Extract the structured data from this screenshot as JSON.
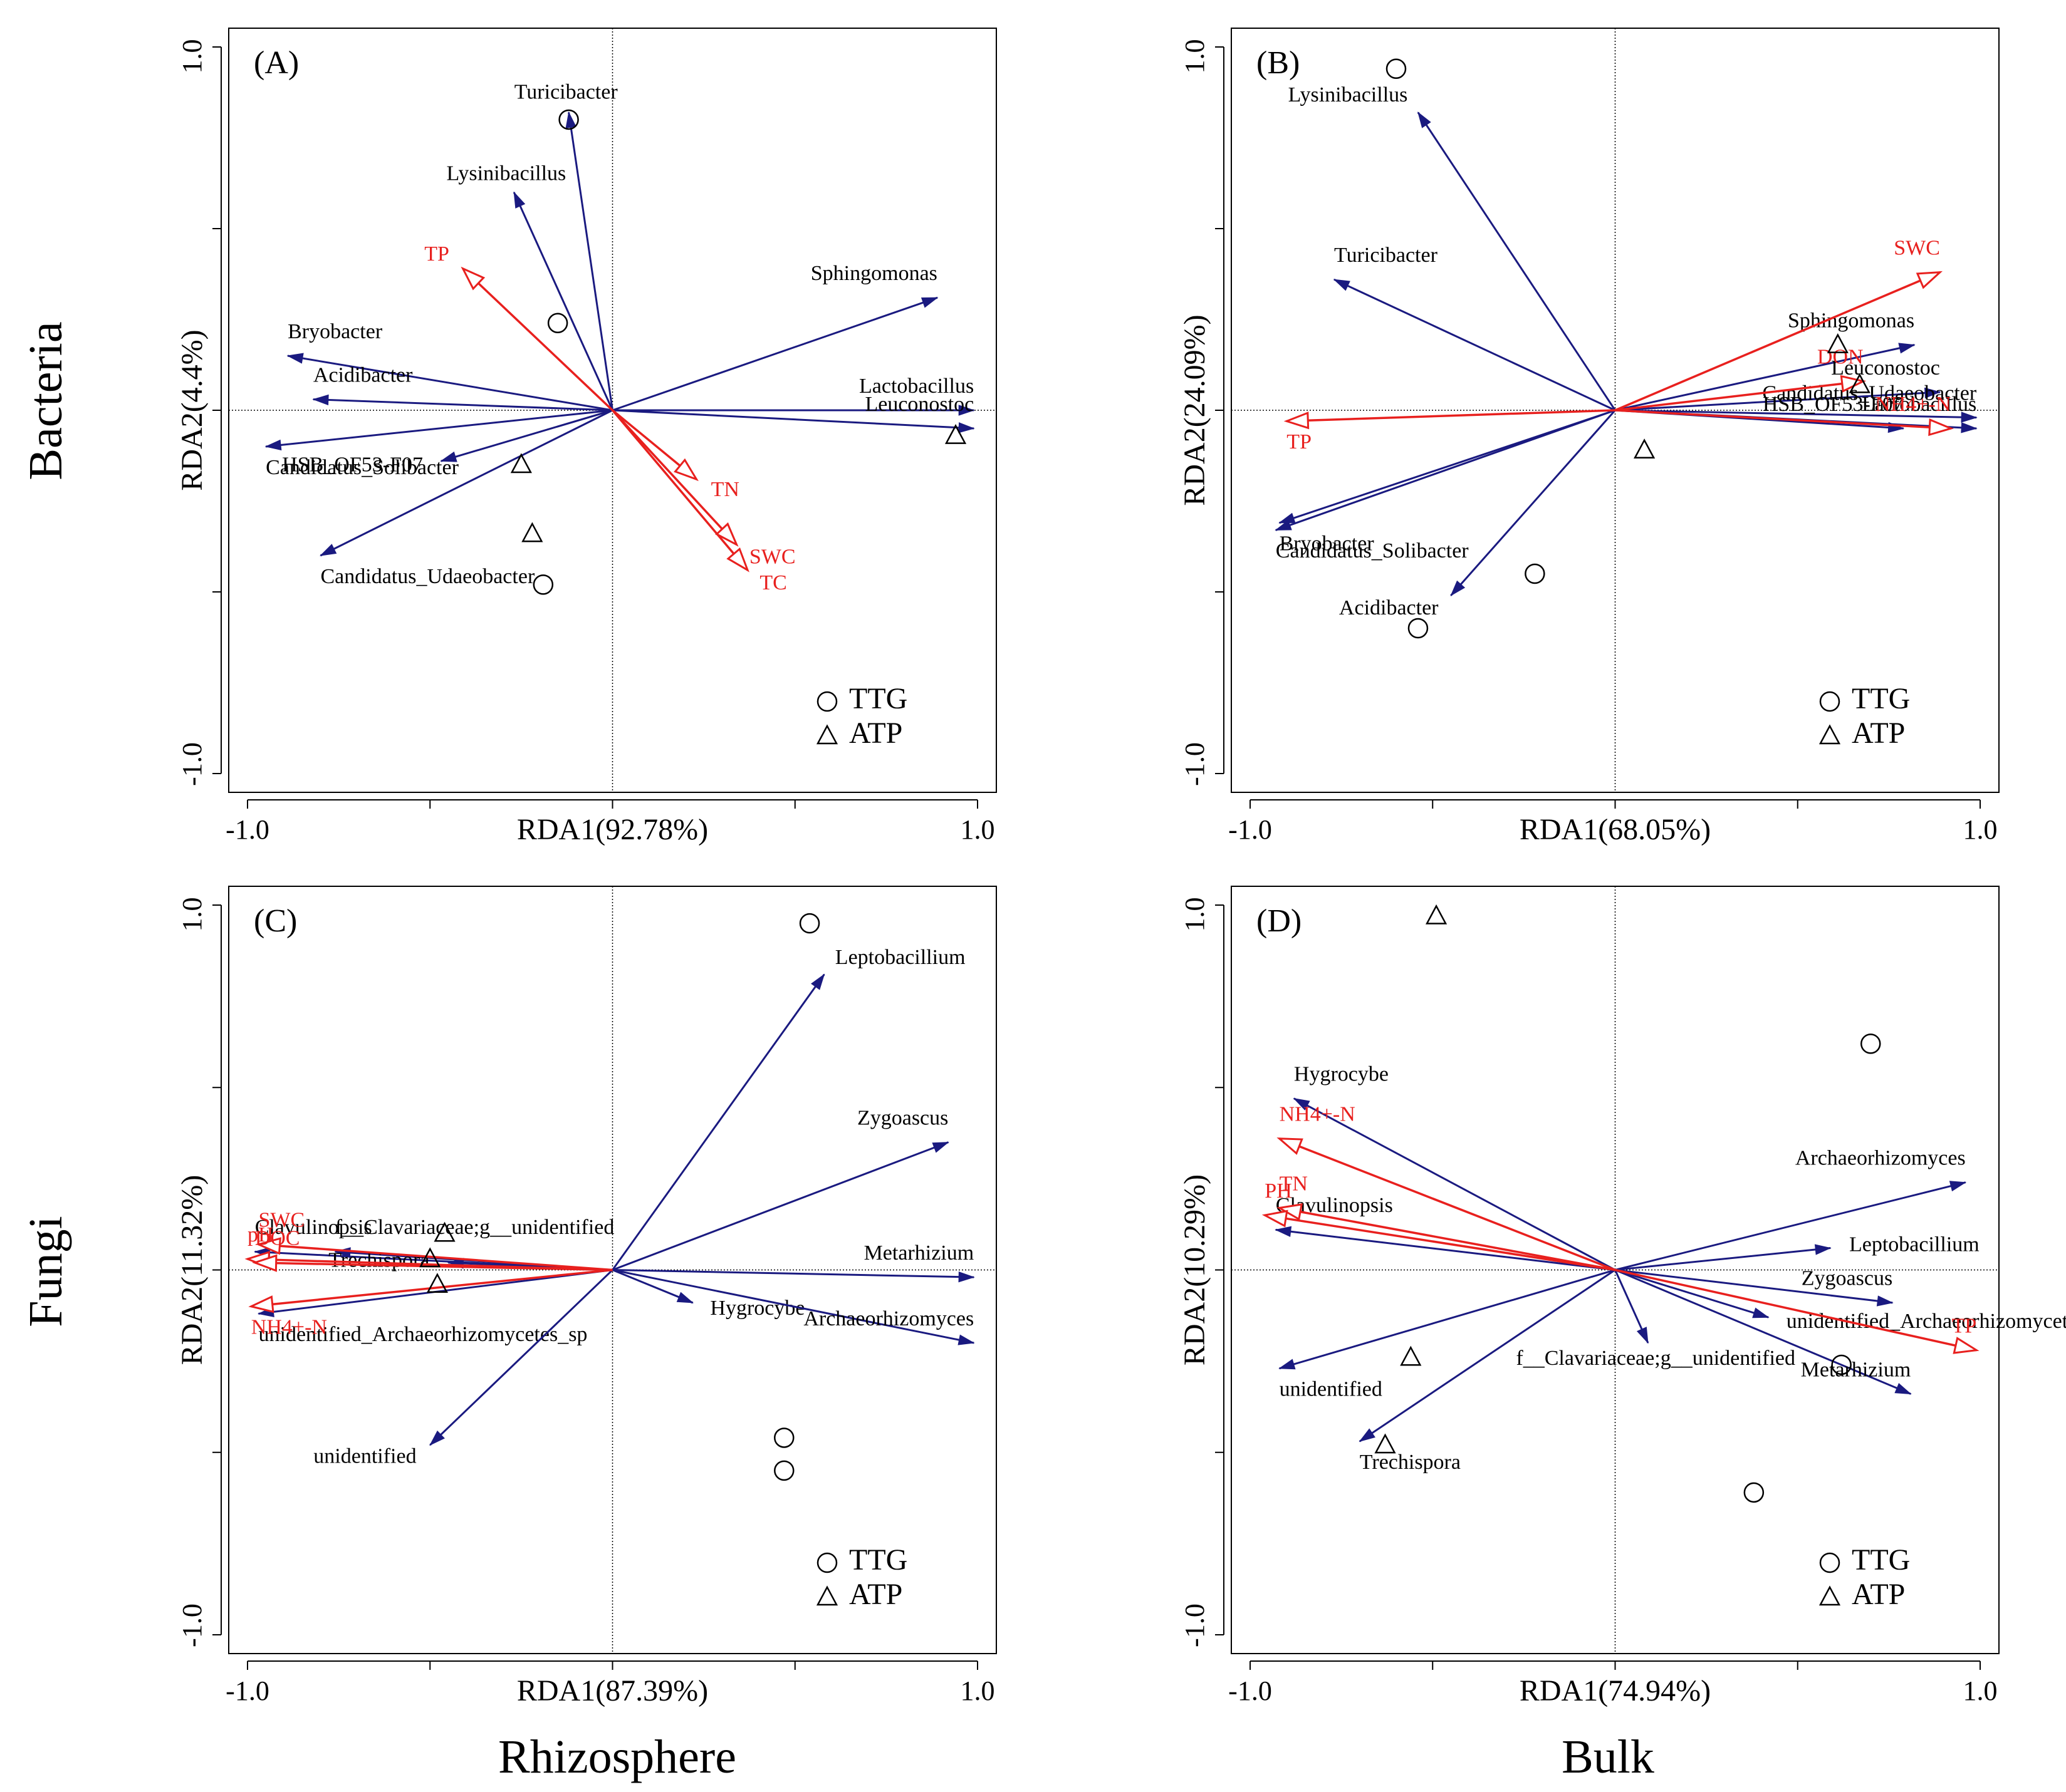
{
  "figure": {
    "row_labels": [
      "Bacteria",
      "Fungi"
    ],
    "column_labels": [
      "Rhizosphere",
      "Bulk"
    ],
    "legend": [
      {
        "label": "TTG",
        "marker": "circle"
      },
      {
        "label": "ATP",
        "marker": "triangle"
      }
    ],
    "colors": {
      "species": "#1a1a80",
      "env": "#e8201e",
      "axis": "#000000"
    }
  },
  "chart_data": [
    {
      "type": "scatter",
      "panel": "(A)",
      "xlabel": "RDA1(92.78%)",
      "ylabel": "RDA2(4.4%)",
      "xlim": [
        -1.0,
        1.0
      ],
      "ylim": [
        -1.0,
        1.0
      ],
      "x_ticks": [
        "-1.0",
        "1.0"
      ],
      "y_ticks": [
        "-1.0",
        "1.0"
      ],
      "species_arrows": [
        {
          "name": "Turicibacter",
          "x": -0.12,
          "y": 0.82
        },
        {
          "name": "Lysinibacillus",
          "x": -0.27,
          "y": 0.6
        },
        {
          "name": "Sphingomonas",
          "x": 0.89,
          "y": 0.31
        },
        {
          "name": "Bryobacter",
          "x": -0.89,
          "y": 0.15
        },
        {
          "name": "Acidibacter",
          "x": -0.82,
          "y": 0.03
        },
        {
          "name": "Lactobacillus",
          "x": 0.99,
          "y": 0.0
        },
        {
          "name": "Candidatus_Solibacter",
          "x": -0.95,
          "y": -0.1
        },
        {
          "name": "Leuconostoc",
          "x": 0.99,
          "y": -0.05
        },
        {
          "name": "HSB_OF53-F07",
          "x": -0.47,
          "y": -0.14
        },
        {
          "name": "Candidatus_Udaeobacter",
          "x": -0.8,
          "y": -0.4
        }
      ],
      "env_arrows": [
        {
          "name": "TP",
          "x": -0.41,
          "y": 0.39
        },
        {
          "name": "TN",
          "x": 0.23,
          "y": -0.19
        },
        {
          "name": "SWC",
          "x": 0.34,
          "y": -0.37
        },
        {
          "name": "TC",
          "x": 0.37,
          "y": -0.44
        }
      ],
      "samples": [
        {
          "group": "TTG",
          "x": -0.12,
          "y": 0.8
        },
        {
          "group": "TTG",
          "x": -0.15,
          "y": 0.24
        },
        {
          "group": "TTG",
          "x": -0.19,
          "y": -0.48
        },
        {
          "group": "ATP",
          "x": -0.25,
          "y": -0.15
        },
        {
          "group": "ATP",
          "x": -0.22,
          "y": -0.34
        },
        {
          "group": "ATP",
          "x": 0.94,
          "y": -0.07
        }
      ]
    },
    {
      "type": "scatter",
      "panel": "(B)",
      "xlabel": "RDA1(68.05%)",
      "ylabel": "RDA2(24.09%)",
      "xlim": [
        -1.0,
        1.0
      ],
      "ylim": [
        -1.0,
        1.0
      ],
      "x_ticks": [
        "-1.0",
        "1.0"
      ],
      "y_ticks": [
        "-1.0",
        "1.0"
      ],
      "species_arrows": [
        {
          "name": "Lysinibacillus",
          "x": -0.54,
          "y": 0.82
        },
        {
          "name": "Turicibacter",
          "x": -0.77,
          "y": 0.36
        },
        {
          "name": "Sphingomonas",
          "x": 0.82,
          "y": 0.18
        },
        {
          "name": "Leuconostoc",
          "x": 0.89,
          "y": 0.05
        },
        {
          "name": "Candidatus_Udaeobacter",
          "x": 0.99,
          "y": -0.02
        },
        {
          "name": "Lactobacillus",
          "x": 0.99,
          "y": -0.05
        },
        {
          "name": "HSB_OF53-F07",
          "x": 0.79,
          "y": -0.05
        },
        {
          "name": "Bryobacter",
          "x": -0.92,
          "y": -0.31
        },
        {
          "name": "Candidatus_Solibacter",
          "x": -0.93,
          "y": -0.33
        },
        {
          "name": "Acidibacter",
          "x": -0.45,
          "y": -0.51
        }
      ],
      "env_arrows": [
        {
          "name": "SWC",
          "x": 0.89,
          "y": 0.38
        },
        {
          "name": "DON",
          "x": 0.68,
          "y": 0.08
        },
        {
          "name": "NH4+-N",
          "x": 0.92,
          "y": -0.05
        },
        {
          "name": "TP",
          "x": -0.9,
          "y": -0.03
        }
      ],
      "samples": [
        {
          "group": "TTG",
          "x": -0.6,
          "y": 0.94
        },
        {
          "group": "TTG",
          "x": -0.22,
          "y": -0.45
        },
        {
          "group": "TTG",
          "x": -0.54,
          "y": -0.6
        },
        {
          "group": "ATP",
          "x": 0.61,
          "y": 0.18
        },
        {
          "group": "ATP",
          "x": 0.67,
          "y": 0.07
        },
        {
          "group": "ATP",
          "x": 0.08,
          "y": -0.11
        }
      ]
    },
    {
      "type": "scatter",
      "panel": "(C)",
      "xlabel": "RDA1(87.39%)",
      "ylabel": "RDA2(11.32%)",
      "xlim": [
        -1.0,
        1.0
      ],
      "ylim": [
        -1.0,
        1.0
      ],
      "x_ticks": [
        "-1.0",
        "1.0"
      ],
      "y_ticks": [
        "-1.0",
        "1.0"
      ],
      "species_arrows": [
        {
          "name": "Leptobacillium",
          "x": 0.58,
          "y": 0.81
        },
        {
          "name": "Zygoascus",
          "x": 0.92,
          "y": 0.35
        },
        {
          "name": "f__Clavariaceae;g__unidentified",
          "x": -0.76,
          "y": 0.05
        },
        {
          "name": "Clavulinopsis",
          "x": -0.98,
          "y": 0.05
        },
        {
          "name": "Trechispora",
          "x": -0.45,
          "y": 0.02
        },
        {
          "name": "Metarhizium",
          "x": 0.99,
          "y": -0.02
        },
        {
          "name": "Hygrocybe",
          "x": 0.22,
          "y": -0.09
        },
        {
          "name": "Archaeorhizomyces",
          "x": 0.99,
          "y": -0.2
        },
        {
          "name": "unidentified_Archaeorhizomycetes_sp",
          "x": -0.97,
          "y": -0.12
        },
        {
          "name": "unidentified",
          "x": -0.5,
          "y": -0.48
        }
      ],
      "env_arrows": [
        {
          "name": "SWC",
          "x": -0.97,
          "y": 0.07
        },
        {
          "name": "pH",
          "x": -1.0,
          "y": 0.03
        },
        {
          "name": "DOC",
          "x": -0.98,
          "y": 0.02
        },
        {
          "name": "NH4+-N",
          "x": -0.99,
          "y": -0.1
        }
      ],
      "samples": [
        {
          "group": "TTG",
          "x": 0.54,
          "y": 0.95
        },
        {
          "group": "TTG",
          "x": 0.47,
          "y": -0.46
        },
        {
          "group": "TTG",
          "x": 0.47,
          "y": -0.55
        },
        {
          "group": "ATP",
          "x": -0.46,
          "y": 0.1
        },
        {
          "group": "ATP",
          "x": -0.5,
          "y": 0.03
        },
        {
          "group": "ATP",
          "x": -0.48,
          "y": -0.04
        }
      ]
    },
    {
      "type": "scatter",
      "panel": "(D)",
      "xlabel": "RDA1(74.94%)",
      "ylabel": "RDA2(10.29%)",
      "xlim": [
        -1.0,
        1.0
      ],
      "ylim": [
        -1.0,
        1.0
      ],
      "x_ticks": [
        "-1.0",
        "1.0"
      ],
      "y_ticks": [
        "-1.0",
        "1.0"
      ],
      "species_arrows": [
        {
          "name": "Hygrocybe",
          "x": -0.88,
          "y": 0.47
        },
        {
          "name": "Archaeorhizomyces",
          "x": 0.96,
          "y": 0.24
        },
        {
          "name": "Leptobacillium",
          "x": 0.59,
          "y": 0.06
        },
        {
          "name": "Clavulinopsis",
          "x": -0.93,
          "y": 0.11
        },
        {
          "name": "Zygoascus",
          "x": 0.76,
          "y": -0.09
        },
        {
          "name": "unidentified_Archaeorhizomycetes_sp",
          "x": 0.42,
          "y": -0.13
        },
        {
          "name": "f__Clavariaceae;g__unidentified",
          "x": 0.09,
          "y": -0.2
        },
        {
          "name": "Metarhizium",
          "x": 0.81,
          "y": -0.34
        },
        {
          "name": "unidentified",
          "x": -0.92,
          "y": -0.27
        },
        {
          "name": "Trechispora",
          "x": -0.7,
          "y": -0.47
        }
      ],
      "env_arrows": [
        {
          "name": "NH4+-N",
          "x": -0.92,
          "y": 0.36
        },
        {
          "name": "TN",
          "x": -0.92,
          "y": 0.17
        },
        {
          "name": "PH",
          "x": -0.96,
          "y": 0.15
        },
        {
          "name": "TP",
          "x": 0.99,
          "y": -0.22
        }
      ],
      "samples": [
        {
          "group": "TTG",
          "x": 0.7,
          "y": 0.62
        },
        {
          "group": "TTG",
          "x": 0.62,
          "y": -0.26
        },
        {
          "group": "TTG",
          "x": 0.38,
          "y": -0.61
        },
        {
          "group": "ATP",
          "x": -0.49,
          "y": 0.97
        },
        {
          "group": "ATP",
          "x": -0.56,
          "y": -0.24
        },
        {
          "group": "ATP",
          "x": -0.63,
          "y": -0.48
        }
      ]
    }
  ]
}
